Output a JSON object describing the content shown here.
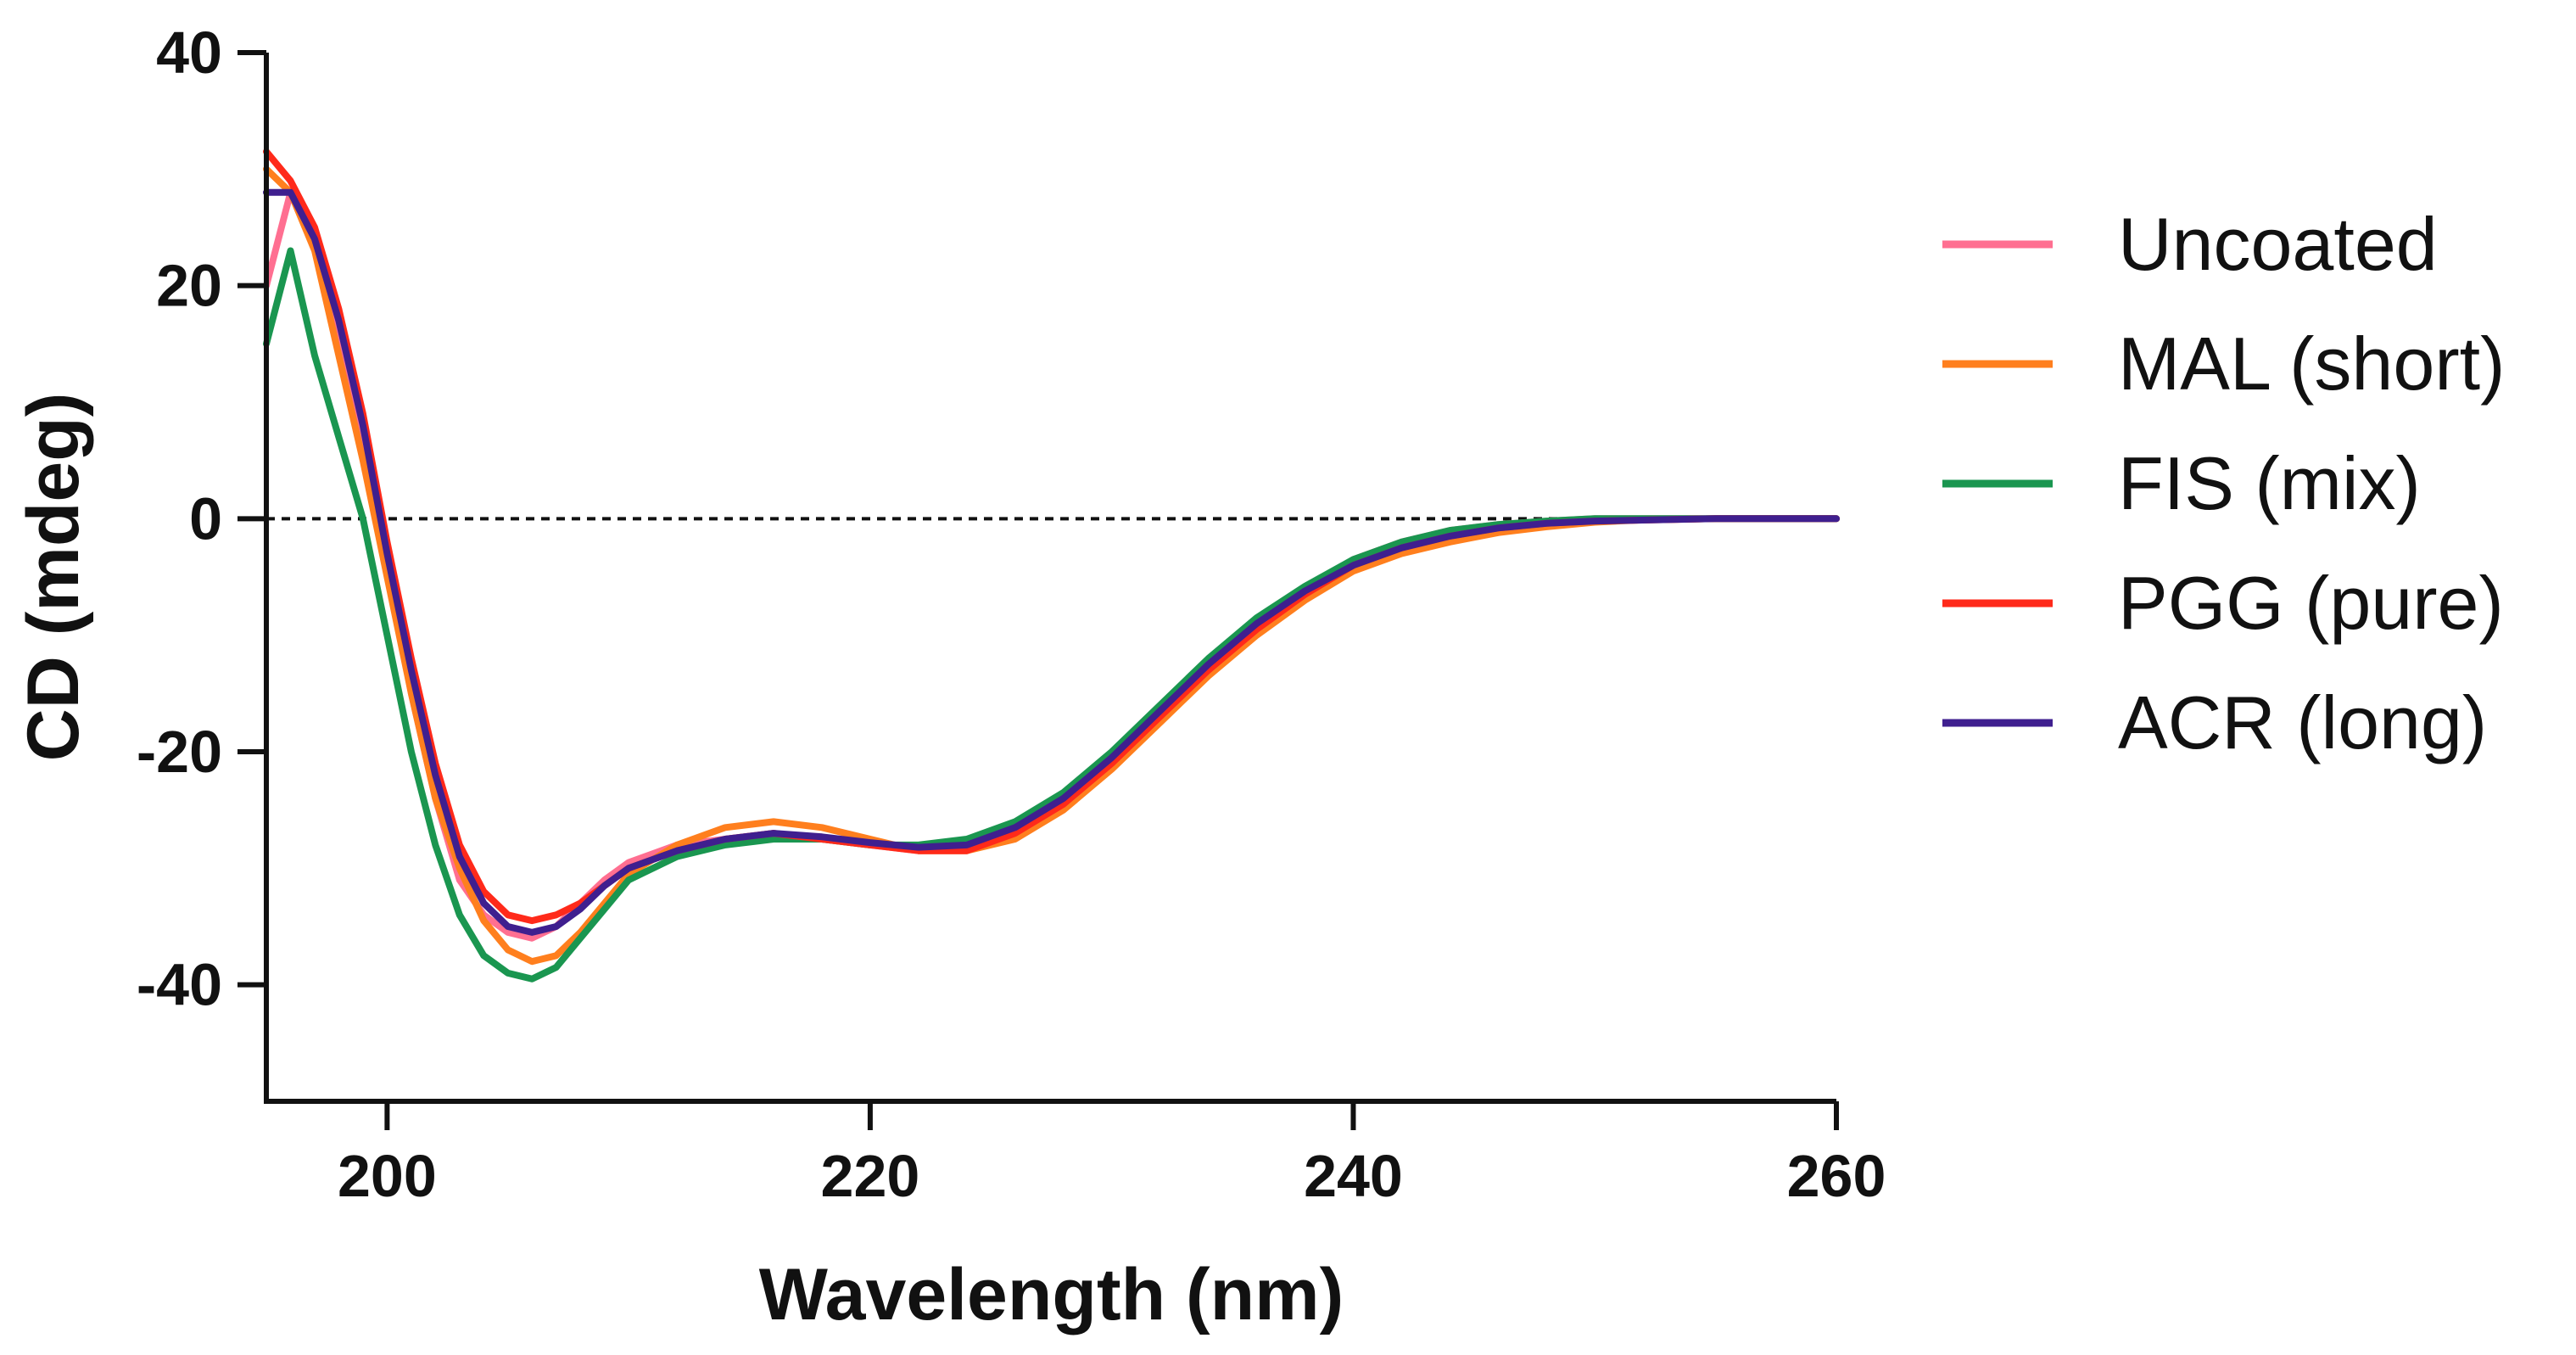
{
  "chart_data": {
    "type": "line",
    "title": "",
    "xlabel": "Wavelength (nm)",
    "ylabel": "CD (mdeg)",
    "xlim": [
      195,
      260
    ],
    "ylim": [
      -50,
      40
    ],
    "xticks": [
      200,
      220,
      240,
      260
    ],
    "yticks": [
      -40,
      -20,
      0,
      20,
      40
    ],
    "zero_line": true,
    "legend_position": "right",
    "series": [
      {
        "name": "Uncoated",
        "color": "#ff6f91",
        "points": [
          [
            195,
            20
          ],
          [
            196,
            28
          ],
          [
            197,
            24
          ],
          [
            198,
            16
          ],
          [
            199,
            7
          ],
          [
            200,
            -4
          ],
          [
            201,
            -15
          ],
          [
            202,
            -24
          ],
          [
            203,
            -31
          ],
          [
            204,
            -34
          ],
          [
            205,
            -35.5
          ],
          [
            206,
            -36
          ],
          [
            207,
            -35
          ],
          [
            208,
            -33
          ],
          [
            209,
            -31
          ],
          [
            210,
            -29.5
          ],
          [
            212,
            -28
          ],
          [
            214,
            -27.5
          ],
          [
            216,
            -27
          ],
          [
            218,
            -27.5
          ],
          [
            220,
            -28
          ],
          [
            222,
            -28.5
          ],
          [
            224,
            -28
          ],
          [
            226,
            -26.5
          ],
          [
            228,
            -24
          ],
          [
            230,
            -20.5
          ],
          [
            232,
            -16.5
          ],
          [
            234,
            -12.5
          ],
          [
            236,
            -9
          ],
          [
            238,
            -6
          ],
          [
            240,
            -3.5
          ],
          [
            242,
            -2
          ],
          [
            244,
            -1
          ],
          [
            246,
            -0.5
          ],
          [
            248,
            -0.2
          ],
          [
            250,
            0
          ],
          [
            255,
            0
          ],
          [
            260,
            0
          ]
        ]
      },
      {
        "name": "MAL (short)",
        "color": "#ff7f1e",
        "points": [
          [
            195,
            30
          ],
          [
            196,
            28
          ],
          [
            197,
            23
          ],
          [
            198,
            14
          ],
          [
            199,
            5
          ],
          [
            200,
            -5
          ],
          [
            201,
            -15
          ],
          [
            202,
            -24
          ],
          [
            203,
            -30
          ],
          [
            204,
            -34.5
          ],
          [
            205,
            -37
          ],
          [
            206,
            -38
          ],
          [
            207,
            -37.5
          ],
          [
            208,
            -35.5
          ],
          [
            209,
            -33
          ],
          [
            210,
            -30.5
          ],
          [
            212,
            -28
          ],
          [
            214,
            -26.5
          ],
          [
            216,
            -26
          ],
          [
            218,
            -26.5
          ],
          [
            220,
            -27.5
          ],
          [
            222,
            -28.5
          ],
          [
            224,
            -28.5
          ],
          [
            226,
            -27.5
          ],
          [
            228,
            -25
          ],
          [
            230,
            -21.5
          ],
          [
            232,
            -17.5
          ],
          [
            234,
            -13.5
          ],
          [
            236,
            -10
          ],
          [
            238,
            -7
          ],
          [
            240,
            -4.5
          ],
          [
            242,
            -3
          ],
          [
            244,
            -2
          ],
          [
            246,
            -1.2
          ],
          [
            248,
            -0.7
          ],
          [
            250,
            -0.3
          ],
          [
            252,
            -0.1
          ],
          [
            255,
            0
          ],
          [
            260,
            0
          ]
        ]
      },
      {
        "name": "FIS (mix)",
        "color": "#1a9650",
        "points": [
          [
            195,
            15
          ],
          [
            196,
            23
          ],
          [
            197,
            14
          ],
          [
            198,
            7
          ],
          [
            199,
            0
          ],
          [
            200,
            -10
          ],
          [
            201,
            -20
          ],
          [
            202,
            -28
          ],
          [
            203,
            -34
          ],
          [
            204,
            -37.5
          ],
          [
            205,
            -39
          ],
          [
            206,
            -39.5
          ],
          [
            207,
            -38.5
          ],
          [
            208,
            -36
          ],
          [
            209,
            -33.5
          ],
          [
            210,
            -31
          ],
          [
            212,
            -29
          ],
          [
            214,
            -28
          ],
          [
            216,
            -27.5
          ],
          [
            218,
            -27.5
          ],
          [
            220,
            -28
          ],
          [
            222,
            -28
          ],
          [
            224,
            -27.5
          ],
          [
            226,
            -26
          ],
          [
            228,
            -23.5
          ],
          [
            230,
            -20
          ],
          [
            232,
            -16
          ],
          [
            234,
            -12
          ],
          [
            236,
            -8.5
          ],
          [
            238,
            -5.8
          ],
          [
            240,
            -3.5
          ],
          [
            242,
            -2
          ],
          [
            244,
            -1
          ],
          [
            246,
            -0.5
          ],
          [
            248,
            -0.2
          ],
          [
            250,
            0
          ],
          [
            255,
            0
          ],
          [
            260,
            0
          ]
        ]
      },
      {
        "name": "PGG (pure)",
        "color": "#ff2a1a",
        "points": [
          [
            195,
            31.5
          ],
          [
            196,
            29
          ],
          [
            197,
            25
          ],
          [
            198,
            18
          ],
          [
            199,
            9
          ],
          [
            200,
            -2
          ],
          [
            201,
            -12
          ],
          [
            202,
            -21
          ],
          [
            203,
            -28
          ],
          [
            204,
            -32
          ],
          [
            205,
            -34
          ],
          [
            206,
            -34.5
          ],
          [
            207,
            -34
          ],
          [
            208,
            -33
          ],
          [
            209,
            -31.5
          ],
          [
            210,
            -30
          ],
          [
            212,
            -28.5
          ],
          [
            214,
            -27.5
          ],
          [
            216,
            -27
          ],
          [
            218,
            -27.5
          ],
          [
            220,
            -28
          ],
          [
            222,
            -28.5
          ],
          [
            224,
            -28.5
          ],
          [
            226,
            -27
          ],
          [
            228,
            -24.5
          ],
          [
            230,
            -21
          ],
          [
            232,
            -17
          ],
          [
            234,
            -13
          ],
          [
            236,
            -9.5
          ],
          [
            238,
            -6.5
          ],
          [
            240,
            -4
          ],
          [
            242,
            -2.5
          ],
          [
            244,
            -1.5
          ],
          [
            246,
            -0.8
          ],
          [
            248,
            -0.4
          ],
          [
            250,
            -0.2
          ],
          [
            255,
            0
          ],
          [
            260,
            0
          ]
        ]
      },
      {
        "name": "ACR (long)",
        "color": "#3f1f8f",
        "points": [
          [
            195,
            28
          ],
          [
            196,
            28
          ],
          [
            197,
            24
          ],
          [
            198,
            17
          ],
          [
            199,
            8
          ],
          [
            200,
            -3
          ],
          [
            201,
            -13
          ],
          [
            202,
            -22
          ],
          [
            203,
            -29
          ],
          [
            204,
            -33
          ],
          [
            205,
            -35
          ],
          [
            206,
            -35.5
          ],
          [
            207,
            -35
          ],
          [
            208,
            -33.5
          ],
          [
            209,
            -31.5
          ],
          [
            210,
            -30
          ],
          [
            212,
            -28.5
          ],
          [
            214,
            -27.5
          ],
          [
            216,
            -27
          ],
          [
            218,
            -27.3
          ],
          [
            220,
            -27.8
          ],
          [
            222,
            -28.2
          ],
          [
            224,
            -28
          ],
          [
            226,
            -26.5
          ],
          [
            228,
            -24
          ],
          [
            230,
            -20.5
          ],
          [
            232,
            -16.5
          ],
          [
            234,
            -12.5
          ],
          [
            236,
            -9
          ],
          [
            238,
            -6.2
          ],
          [
            240,
            -4
          ],
          [
            242,
            -2.5
          ],
          [
            244,
            -1.5
          ],
          [
            246,
            -0.8
          ],
          [
            248,
            -0.4
          ],
          [
            250,
            -0.2
          ],
          [
            255,
            0
          ],
          [
            260,
            0
          ]
        ]
      }
    ]
  }
}
